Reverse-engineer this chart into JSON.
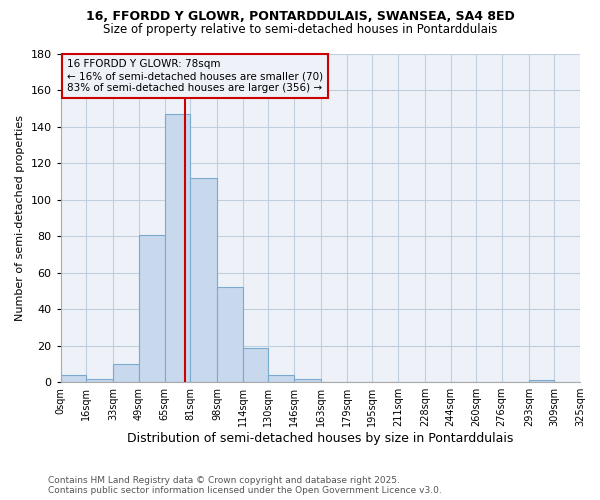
{
  "title_line1": "16, FFORDD Y GLOWR, PONTARDDULAIS, SWANSEA, SA4 8ED",
  "title_line2": "Size of property relative to semi-detached houses in Pontarddulais",
  "xlabel": "Distribution of semi-detached houses by size in Pontarddulais",
  "ylabel": "Number of semi-detached properties",
  "bin_edges": [
    0,
    16,
    33,
    49,
    65,
    81,
    98,
    114,
    130,
    146,
    163,
    179,
    195,
    211,
    228,
    244,
    260,
    276,
    293,
    309,
    325
  ],
  "bin_labels": [
    "0sqm",
    "16sqm",
    "33sqm",
    "49sqm",
    "65sqm",
    "81sqm",
    "98sqm",
    "114sqm",
    "130sqm",
    "146sqm",
    "163sqm",
    "179sqm",
    "195sqm",
    "211sqm",
    "228sqm",
    "244sqm",
    "260sqm",
    "276sqm",
    "293sqm",
    "309sqm",
    "325sqm"
  ],
  "counts": [
    4,
    2,
    10,
    81,
    147,
    112,
    52,
    19,
    4,
    2,
    0,
    0,
    0,
    0,
    0,
    0,
    0,
    0,
    1,
    0
  ],
  "property_size": 78,
  "pct_smaller": 16,
  "n_smaller": 70,
  "pct_larger": 83,
  "n_larger": 356,
  "bar_color": "#c8d8ed",
  "bar_edge_color": "#7aaad0",
  "vline_color": "#cc0000",
  "annotation_box_color": "#cc0000",
  "grid_color": "#c0cfe0",
  "background_color": "#ffffff",
  "plot_bg_color": "#eef2f8",
  "ylim": [
    0,
    180
  ],
  "footer_text": "Contains HM Land Registry data © Crown copyright and database right 2025.\nContains public sector information licensed under the Open Government Licence v3.0."
}
